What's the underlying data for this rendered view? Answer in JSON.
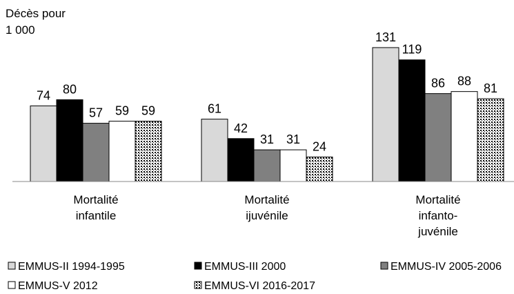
{
  "chart_data": {
    "type": "bar",
    "y_label": "Décès pour 1 000",
    "categories": [
      "Mortalité infantile",
      "Mortalité ijuvénile",
      "Mortalité infanto-juvénile"
    ],
    "series": [
      {
        "name": "EMMUS-II 1994-1995",
        "color": "#d9d9d9",
        "values": [
          74,
          61,
          131
        ]
      },
      {
        "name": "EMMUS-III 2000",
        "color": "#000000",
        "values": [
          80,
          42,
          119
        ]
      },
      {
        "name": "EMMUS-IV 2005-2006",
        "color": "#808080",
        "values": [
          57,
          31,
          86
        ]
      },
      {
        "name": "EMMUS-V 2012",
        "color": "#ffffff",
        "values": [
          59,
          31,
          88
        ]
      },
      {
        "name": "EMMUS-VI 2016-2017",
        "color": "#ffffff",
        "pattern": "dots",
        "values": [
          59,
          24,
          81
        ]
      }
    ],
    "ylim": [
      0,
      160
    ]
  }
}
